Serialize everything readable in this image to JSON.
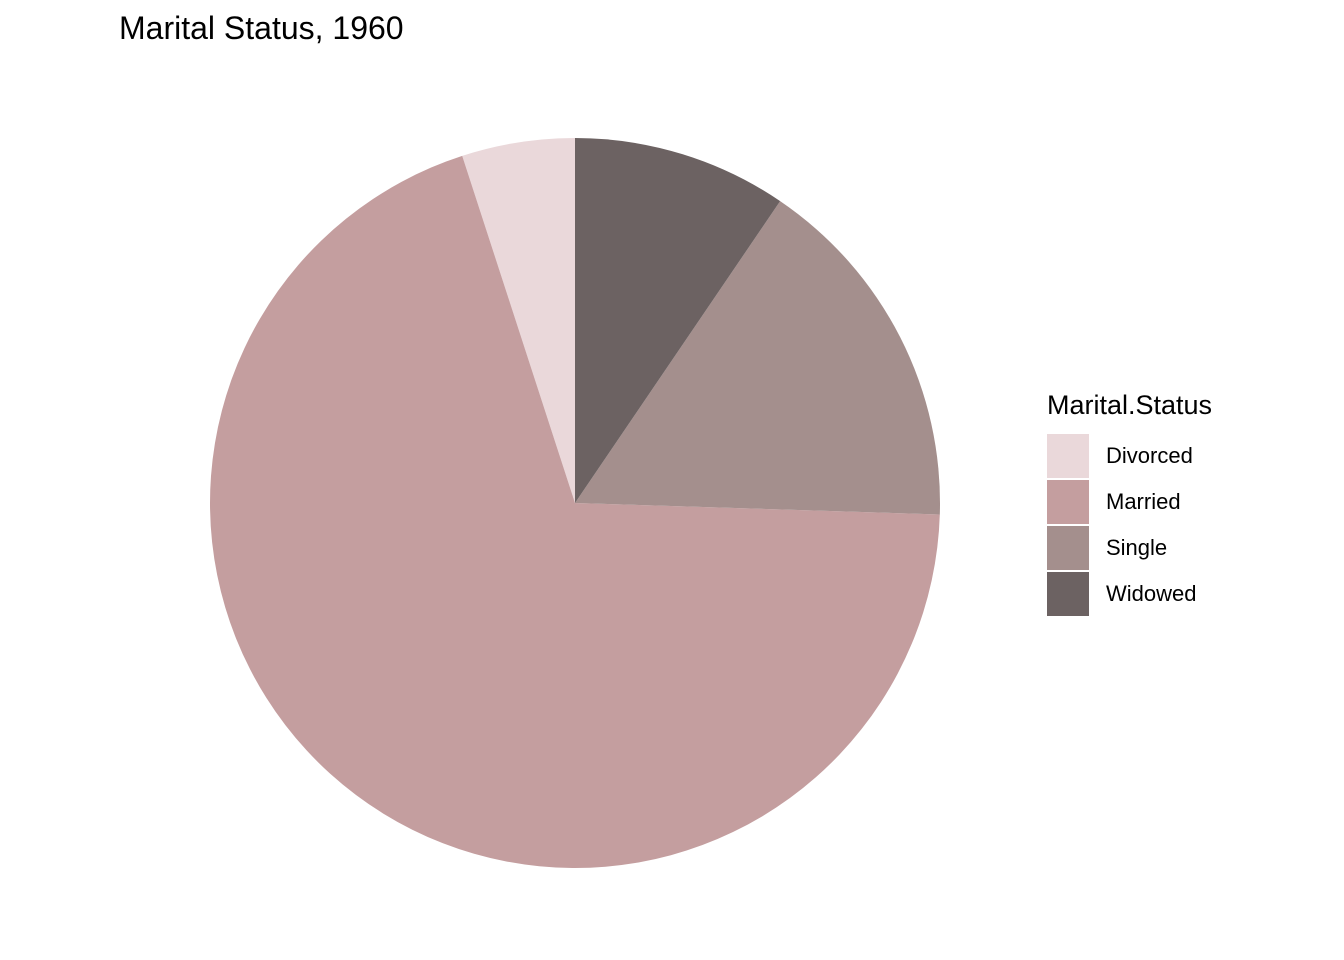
{
  "chart_data": {
    "type": "pie",
    "title": "Marital Status, 1960",
    "legend_title": "Marital.Status",
    "legend_position": "right",
    "categories": [
      "Divorced",
      "Married",
      "Single",
      "Widowed"
    ],
    "values": [
      5.0,
      69.5,
      16.0,
      9.5
    ],
    "colors": [
      "#EAD8DA",
      "#C49E9F",
      "#A48F8D",
      "#6C6262"
    ],
    "start_angle_deg": 0,
    "direction": "counterclockwise"
  }
}
